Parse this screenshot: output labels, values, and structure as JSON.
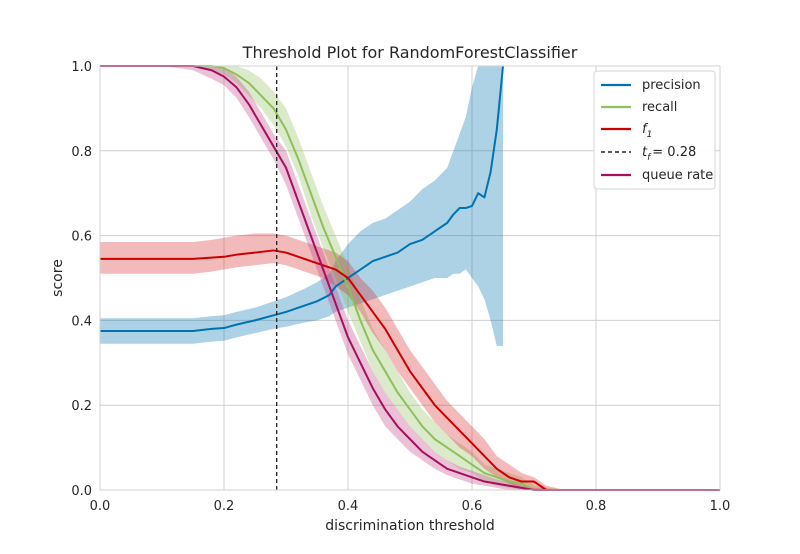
{
  "chart_data": {
    "type": "line",
    "title": "Threshold Plot for RandomForestClassifier",
    "xlabel": "discrimination threshold",
    "ylabel": "score",
    "xlim": [
      0.0,
      1.0
    ],
    "ylim": [
      0.0,
      1.0
    ],
    "xticks": [
      "0.0",
      "0.2",
      "0.4",
      "0.6",
      "0.8",
      "1.0"
    ],
    "yticks": [
      "0.0",
      "0.2",
      "0.4",
      "0.6",
      "0.8",
      "1.0"
    ],
    "grid": true,
    "legend_position": "top-right",
    "threshold": {
      "x": 0.285,
      "label_prefix": "t",
      "label_sub": "f",
      "label_value": "= 0.28",
      "color": "#222222"
    },
    "series": [
      {
        "name": "precision",
        "color": "#0072B2",
        "band_color": "#0072B2",
        "x": [
          0.0,
          0.05,
          0.1,
          0.15,
          0.18,
          0.2,
          0.22,
          0.25,
          0.28,
          0.3,
          0.33,
          0.35,
          0.37,
          0.38,
          0.4,
          0.42,
          0.44,
          0.46,
          0.48,
          0.5,
          0.52,
          0.54,
          0.56,
          0.57,
          0.58,
          0.59,
          0.6,
          0.61,
          0.62,
          0.63,
          0.64,
          0.65
        ],
        "y": [
          0.375,
          0.375,
          0.375,
          0.375,
          0.38,
          0.382,
          0.39,
          0.4,
          0.412,
          0.42,
          0.435,
          0.445,
          0.46,
          0.48,
          0.5,
          0.52,
          0.54,
          0.55,
          0.56,
          0.58,
          0.59,
          0.61,
          0.63,
          0.65,
          0.665,
          0.665,
          0.67,
          0.7,
          0.69,
          0.75,
          0.85,
          1.0
        ],
        "lower": [
          0.345,
          0.345,
          0.345,
          0.345,
          0.35,
          0.352,
          0.36,
          0.37,
          0.38,
          0.385,
          0.395,
          0.4,
          0.41,
          0.42,
          0.43,
          0.44,
          0.45,
          0.46,
          0.47,
          0.48,
          0.49,
          0.5,
          0.5,
          0.51,
          0.51,
          0.52,
          0.5,
          0.48,
          0.45,
          0.4,
          0.34,
          0.34
        ],
        "upper": [
          0.405,
          0.405,
          0.405,
          0.405,
          0.41,
          0.412,
          0.42,
          0.43,
          0.445,
          0.455,
          0.475,
          0.49,
          0.51,
          0.54,
          0.58,
          0.61,
          0.63,
          0.64,
          0.66,
          0.68,
          0.71,
          0.73,
          0.76,
          0.8,
          0.84,
          0.88,
          0.95,
          1.0,
          1.0,
          1.0,
          1.0,
          1.0
        ]
      },
      {
        "name": "recall",
        "color": "#8FBF5A",
        "band_color": "#8FBF5A",
        "x": [
          0.0,
          0.1,
          0.15,
          0.18,
          0.2,
          0.22,
          0.24,
          0.26,
          0.28,
          0.3,
          0.32,
          0.34,
          0.36,
          0.38,
          0.4,
          0.42,
          0.44,
          0.46,
          0.48,
          0.5,
          0.52,
          0.54,
          0.56,
          0.58,
          0.6,
          0.62,
          0.64,
          0.66,
          0.68,
          0.7,
          0.75,
          1.0
        ],
        "y": [
          1.0,
          1.0,
          1.0,
          1.0,
          0.995,
          0.98,
          0.96,
          0.93,
          0.9,
          0.85,
          0.78,
          0.7,
          0.62,
          0.55,
          0.48,
          0.4,
          0.33,
          0.28,
          0.23,
          0.19,
          0.15,
          0.12,
          0.1,
          0.08,
          0.06,
          0.04,
          0.03,
          0.02,
          0.015,
          0.0,
          0.0,
          0.0
        ],
        "lower": [
          1.0,
          1.0,
          1.0,
          0.99,
          0.98,
          0.96,
          0.93,
          0.9,
          0.86,
          0.81,
          0.74,
          0.65,
          0.57,
          0.5,
          0.42,
          0.35,
          0.28,
          0.23,
          0.19,
          0.15,
          0.12,
          0.09,
          0.07,
          0.05,
          0.04,
          0.02,
          0.01,
          0.005,
          0.0,
          0.0,
          0.0,
          0.0
        ],
        "upper": [
          1.0,
          1.0,
          1.0,
          1.0,
          1.0,
          1.0,
          0.99,
          0.97,
          0.94,
          0.9,
          0.83,
          0.75,
          0.67,
          0.6,
          0.53,
          0.45,
          0.38,
          0.33,
          0.28,
          0.23,
          0.19,
          0.16,
          0.13,
          0.11,
          0.09,
          0.06,
          0.05,
          0.04,
          0.03,
          0.01,
          0.0,
          0.0
        ]
      },
      {
        "name": "f1",
        "color": "#CC0000",
        "band_color": "#D62728",
        "x": [
          0.0,
          0.05,
          0.1,
          0.15,
          0.18,
          0.2,
          0.22,
          0.25,
          0.28,
          0.3,
          0.32,
          0.34,
          0.36,
          0.38,
          0.4,
          0.42,
          0.44,
          0.46,
          0.48,
          0.5,
          0.52,
          0.54,
          0.56,
          0.58,
          0.6,
          0.62,
          0.64,
          0.66,
          0.68,
          0.7,
          0.72,
          0.75,
          1.0
        ],
        "y": [
          0.545,
          0.545,
          0.545,
          0.545,
          0.548,
          0.55,
          0.555,
          0.56,
          0.565,
          0.56,
          0.55,
          0.54,
          0.53,
          0.52,
          0.5,
          0.46,
          0.42,
          0.38,
          0.33,
          0.28,
          0.24,
          0.2,
          0.17,
          0.14,
          0.11,
          0.08,
          0.05,
          0.03,
          0.02,
          0.02,
          0.0,
          0.0,
          0.0
        ],
        "lower": [
          0.51,
          0.51,
          0.51,
          0.51,
          0.515,
          0.52,
          0.525,
          0.53,
          0.535,
          0.53,
          0.52,
          0.51,
          0.5,
          0.48,
          0.46,
          0.42,
          0.37,
          0.33,
          0.28,
          0.24,
          0.2,
          0.16,
          0.13,
          0.1,
          0.08,
          0.05,
          0.03,
          0.015,
          0.005,
          0.0,
          0.0,
          0.0,
          0.0
        ],
        "upper": [
          0.585,
          0.585,
          0.585,
          0.585,
          0.59,
          0.595,
          0.6,
          0.605,
          0.605,
          0.6,
          0.59,
          0.58,
          0.57,
          0.56,
          0.54,
          0.5,
          0.47,
          0.43,
          0.38,
          0.33,
          0.29,
          0.25,
          0.21,
          0.18,
          0.15,
          0.12,
          0.08,
          0.06,
          0.04,
          0.03,
          0.01,
          0.0,
          0.0
        ]
      },
      {
        "name": "queue rate",
        "color": "#A50F5E",
        "band_color": "#C03D84",
        "x": [
          0.0,
          0.1,
          0.15,
          0.18,
          0.2,
          0.22,
          0.24,
          0.26,
          0.28,
          0.3,
          0.32,
          0.34,
          0.36,
          0.38,
          0.4,
          0.42,
          0.44,
          0.46,
          0.48,
          0.5,
          0.52,
          0.54,
          0.56,
          0.58,
          0.6,
          0.62,
          0.64,
          0.66,
          0.68,
          0.7,
          0.75,
          1.0
        ],
        "y": [
          1.0,
          1.0,
          1.0,
          0.99,
          0.975,
          0.95,
          0.91,
          0.86,
          0.81,
          0.76,
          0.68,
          0.6,
          0.52,
          0.44,
          0.36,
          0.3,
          0.24,
          0.19,
          0.15,
          0.12,
          0.09,
          0.07,
          0.05,
          0.04,
          0.03,
          0.02,
          0.015,
          0.01,
          0.005,
          0.0,
          0.0,
          0.0
        ],
        "lower": [
          1.0,
          1.0,
          0.99,
          0.97,
          0.955,
          0.925,
          0.88,
          0.83,
          0.78,
          0.72,
          0.64,
          0.56,
          0.48,
          0.4,
          0.32,
          0.26,
          0.2,
          0.15,
          0.12,
          0.09,
          0.07,
          0.05,
          0.035,
          0.025,
          0.015,
          0.01,
          0.005,
          0.0,
          0.0,
          0.0,
          0.0,
          0.0
        ],
        "upper": [
          1.0,
          1.0,
          1.0,
          1.0,
          0.995,
          0.975,
          0.94,
          0.89,
          0.84,
          0.8,
          0.72,
          0.64,
          0.56,
          0.48,
          0.4,
          0.34,
          0.28,
          0.23,
          0.19,
          0.15,
          0.12,
          0.09,
          0.07,
          0.055,
          0.045,
          0.035,
          0.025,
          0.02,
          0.01,
          0.005,
          0.0,
          0.0
        ]
      }
    ]
  }
}
